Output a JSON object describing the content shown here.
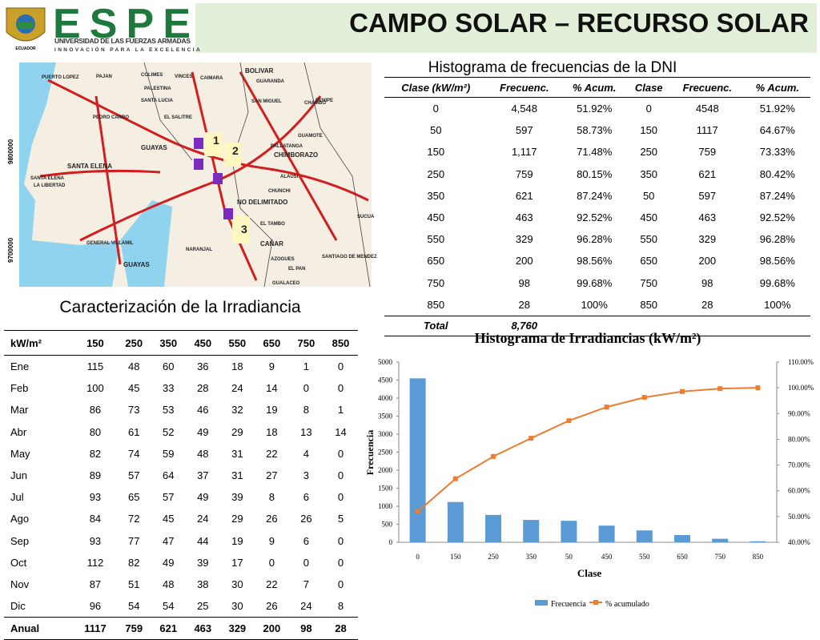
{
  "header": {
    "logo_text": "ESPE",
    "country": "ECUADOR",
    "university": "UNIVERSIDAD DE LAS FUERZAS ARMADAS",
    "slogan": "INNOVACIÓN PARA LA EXCELENCIA",
    "title": "CAMPO SOLAR – RECURSO SOLAR"
  },
  "map": {
    "axis_labels": [
      "9800000",
      "9700000"
    ],
    "labels": [
      "PUERTO LOPEZ",
      "PAJAN",
      "COLIMES",
      "VINCES",
      "CAIMARA",
      "BOLIVAR",
      "GUARANDA",
      "PALESTINA",
      "SANTA LUCIA",
      "SAN MIGUEL",
      "PENIPE",
      "CHAMBO",
      "PEDRO CARBO",
      "EL SALITRE",
      "GUAYAS",
      "SANTA ELENA",
      "CHIMBORAZO",
      "GUAMOTE",
      "PALLATANGA",
      "ALAUSI",
      "CHUNCHI",
      "NO DELIMITADO",
      "EL TAMBO",
      "CAÑAR",
      "GUAYAS",
      "NARANJAL",
      "GENERAL VILLAMIL",
      "SANTA ELENA",
      "LA LIBERTAD",
      "AZOGUES",
      "EL PAN",
      "SUCUA",
      "SANTIAGO DE MENDEZ",
      "GUALACEO",
      "1",
      "2",
      "3"
    ]
  },
  "dni_table": {
    "title": "Histograma de frecuencias de la DNI",
    "headers": [
      "Clase (kW/m²)",
      "Frecuenc.",
      "% Acum.",
      "Clase",
      "Frecuenc.",
      "% Acum."
    ],
    "rows": [
      [
        "0",
        "4,548",
        "51.92%",
        "0",
        "4548",
        "51.92%"
      ],
      [
        "50",
        "597",
        "58.73%",
        "150",
        "1117",
        "64.67%"
      ],
      [
        "150",
        "1,117",
        "71.48%",
        "250",
        "759",
        "73.33%"
      ],
      [
        "250",
        "759",
        "80.15%",
        "350",
        "621",
        "80.42%"
      ],
      [
        "350",
        "621",
        "87.24%",
        "50",
        "597",
        "87.24%"
      ],
      [
        "450",
        "463",
        "92.52%",
        "450",
        "463",
        "92.52%"
      ],
      [
        "550",
        "329",
        "96.28%",
        "550",
        "329",
        "96.28%"
      ],
      [
        "650",
        "200",
        "98.56%",
        "650",
        "200",
        "98.56%"
      ],
      [
        "750",
        "98",
        "99.68%",
        "750",
        "98",
        "99.68%"
      ],
      [
        "850",
        "28",
        "100%",
        "850",
        "28",
        "100%"
      ]
    ],
    "total": [
      "Total",
      "8,760"
    ]
  },
  "irradiance_table": {
    "title": "Caracterización de la Irradiancia",
    "headers": [
      "kW/m²",
      "150",
      "250",
      "350",
      "450",
      "550",
      "650",
      "750",
      "850"
    ],
    "rows": [
      [
        "Ene",
        115,
        48,
        60,
        36,
        18,
        9,
        1,
        0
      ],
      [
        "Feb",
        100,
        45,
        33,
        28,
        24,
        14,
        0,
        0
      ],
      [
        "Mar",
        86,
        73,
        53,
        46,
        32,
        19,
        8,
        1
      ],
      [
        "Abr",
        80,
        61,
        52,
        49,
        29,
        18,
        13,
        14
      ],
      [
        "May",
        82,
        74,
        59,
        48,
        31,
        22,
        4,
        0
      ],
      [
        "Jun",
        89,
        57,
        64,
        37,
        31,
        27,
        3,
        0
      ],
      [
        "Jul",
        93,
        65,
        57,
        49,
        39,
        8,
        6,
        0
      ],
      [
        "Ago",
        84,
        72,
        45,
        24,
        29,
        26,
        26,
        5
      ],
      [
        "Sep",
        93,
        77,
        47,
        44,
        19,
        9,
        6,
        0
      ],
      [
        "Oct",
        112,
        82,
        49,
        39,
        17,
        0,
        0,
        0
      ],
      [
        "Nov",
        87,
        51,
        48,
        38,
        30,
        22,
        7,
        0
      ],
      [
        "Dic",
        96,
        54,
        54,
        25,
        30,
        26,
        24,
        8
      ],
      [
        "Anual",
        1117,
        759,
        621,
        463,
        329,
        200,
        98,
        28
      ]
    ]
  },
  "chart_data": {
    "type": "bar",
    "title": "Histograma de Irradiancias (kW/m²)",
    "xlabel": "Clase",
    "ylabel": "Frecuencia",
    "categories": [
      "0",
      "150",
      "250",
      "350",
      "50",
      "450",
      "550",
      "650",
      "750",
      "850"
    ],
    "series": [
      {
        "name": "Frecuencia",
        "color": "#5b9bd5",
        "values": [
          4548,
          1117,
          759,
          621,
          597,
          463,
          329,
          200,
          98,
          28
        ]
      },
      {
        "name": "% acumulado",
        "color": "#ed7d31",
        "axis": "y2",
        "values": [
          51.92,
          64.67,
          73.33,
          80.42,
          87.24,
          92.52,
          96.28,
          98.56,
          99.68,
          100
        ]
      }
    ],
    "ylim": [
      0,
      5000
    ],
    "yticks": [
      0,
      500,
      1000,
      1500,
      2000,
      2500,
      3000,
      3500,
      4000,
      4500,
      5000
    ],
    "y2lim": [
      40,
      110
    ],
    "y2ticks": [
      {
        "value": 40,
        "label": "40.00%"
      },
      {
        "value": 50,
        "label": "50.00%"
      },
      {
        "value": 60,
        "label": "60.00%"
      },
      {
        "value": 70,
        "label": "70.00%"
      },
      {
        "value": 80,
        "label": "80.00%"
      },
      {
        "value": 90,
        "label": "90.00%"
      },
      {
        "value": 100,
        "label": "100.00%"
      },
      {
        "value": 110,
        "label": "110.00%"
      }
    ],
    "legend": "bottom"
  }
}
